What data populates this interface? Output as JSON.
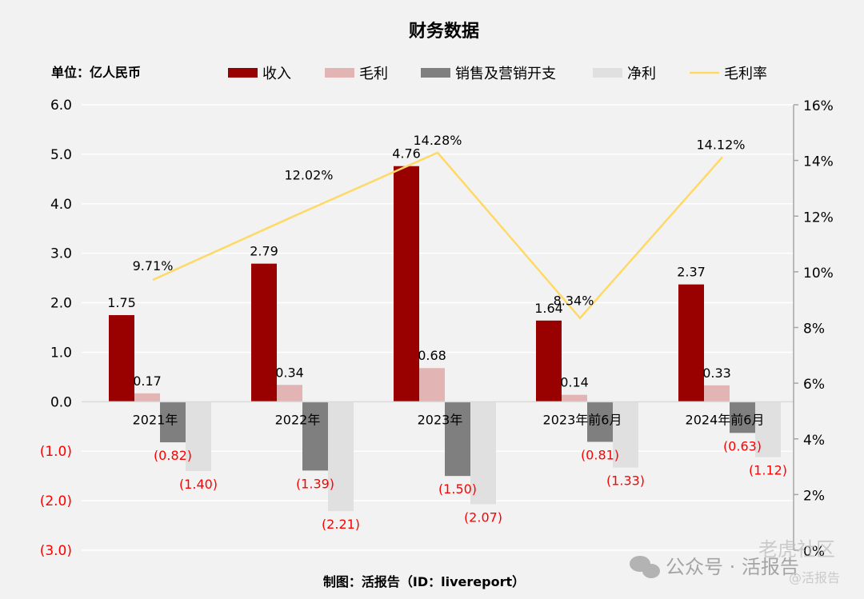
{
  "chart_data": {
    "type": "bar",
    "title": "财务数据",
    "unit_label": "单位：亿人民币",
    "source": "制图：活报告（ID：livereport）",
    "watermark": {
      "line1": "公众号 · 活报告",
      "line2": "老虎社区",
      "line3": "@活报告"
    },
    "categories": [
      "2021年",
      "2022年",
      "2023年",
      "2023年前6月",
      "2024年前6月"
    ],
    "series": [
      {
        "name": "收入",
        "color": "#990000",
        "values": [
          1.75,
          2.79,
          4.76,
          1.64,
          2.37
        ],
        "labels": [
          "1.75",
          "2.79",
          "4.76",
          "1.64",
          "2.37"
        ]
      },
      {
        "name": "毛利",
        "color": "#e2b4b4",
        "values": [
          0.17,
          0.34,
          0.68,
          0.14,
          0.33
        ],
        "labels": [
          "0.17",
          "0.34",
          "0.68",
          "0.14",
          "0.33"
        ]
      },
      {
        "name": "销售及营销开支",
        "color": "#7f7f7f",
        "values": [
          -0.82,
          -1.39,
          -1.5,
          -0.81,
          -0.63
        ],
        "labels": [
          "(0.82)",
          "(1.39)",
          "(1.50)",
          "(0.81)",
          "(0.63)"
        ]
      },
      {
        "name": "净利",
        "color": "#e0e0e0",
        "values": [
          -1.4,
          -2.21,
          -2.07,
          -1.33,
          -1.12
        ],
        "labels": [
          "(1.40)",
          "(2.21)",
          "(2.07)",
          "(1.33)",
          "(1.12)"
        ]
      }
    ],
    "line_series": {
      "name": "毛利率",
      "color": "#ffd966",
      "values": [
        9.71,
        12.02,
        14.28,
        8.34,
        14.12
      ],
      "labels": [
        "9.71%",
        "12.02%",
        "14.28%",
        "8.34%",
        "14.12%"
      ]
    },
    "ylim": [
      -3.0,
      6.0
    ],
    "yticks": [
      6.0,
      5.0,
      4.0,
      3.0,
      2.0,
      1.0,
      0.0,
      -1.0,
      -2.0,
      -3.0
    ],
    "ytick_labels": [
      "6.0",
      "5.0",
      "4.0",
      "3.0",
      "2.0",
      "1.0",
      "0.0",
      "(1.0)",
      "(2.0)",
      "(3.0)"
    ],
    "y2lim": [
      0,
      16
    ],
    "y2ticks": [
      16,
      14,
      12,
      10,
      8,
      6,
      4,
      2,
      0
    ],
    "y2tick_labels": [
      "16%",
      "14%",
      "12%",
      "10%",
      "8%",
      "6%",
      "4%",
      "2%",
      "0%"
    ],
    "negative_label_color": "#ff0000",
    "grid": true,
    "legend_position": "top"
  }
}
